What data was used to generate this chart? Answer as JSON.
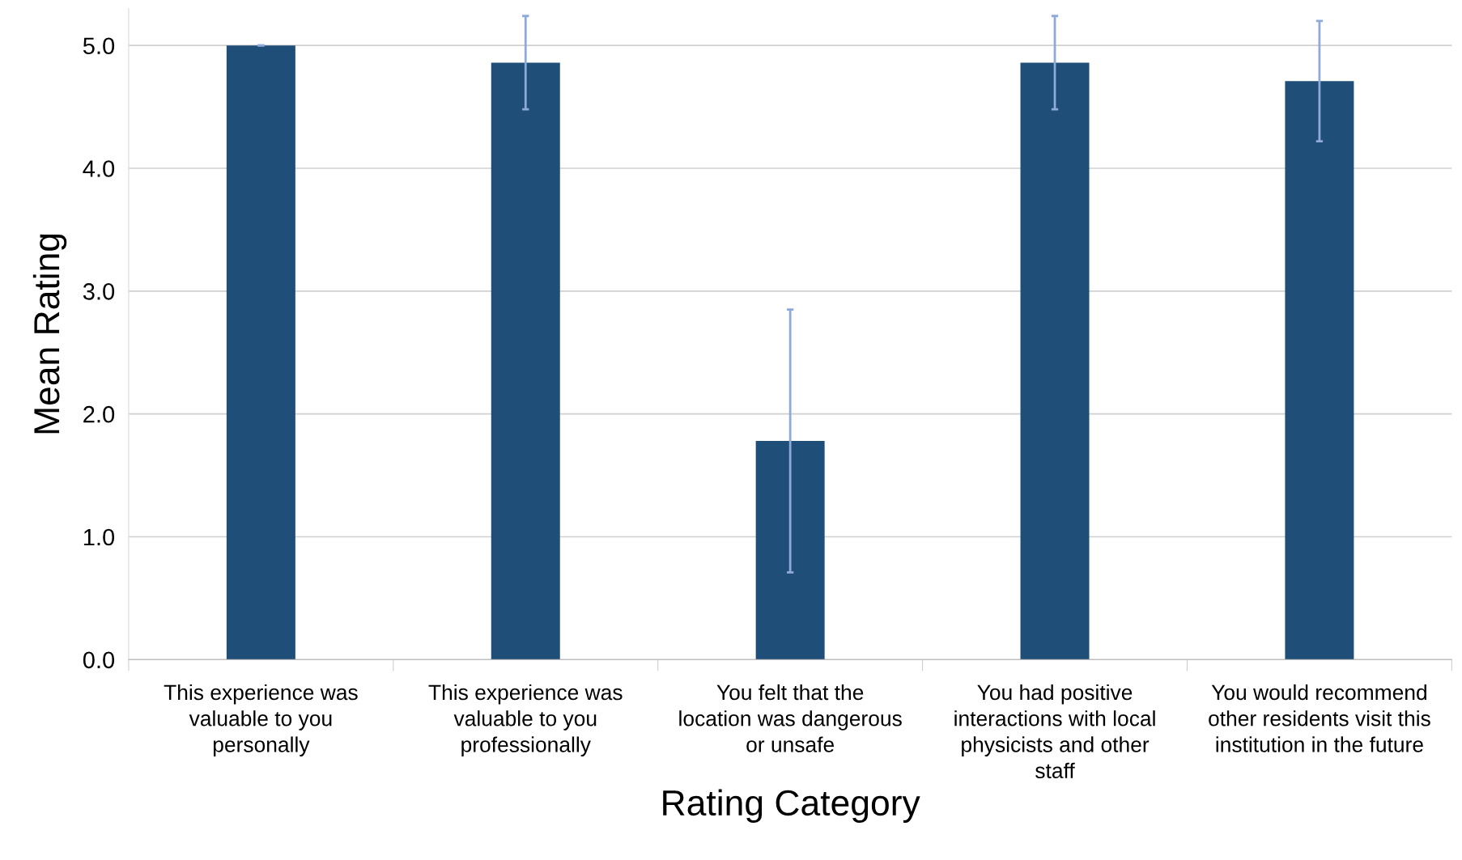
{
  "chart_data": {
    "type": "bar",
    "xlabel": "Rating Category",
    "ylabel": "Mean Rating",
    "categories": [
      "This experience was\nvaluable to you\npersonally",
      "This experience was\nvaluable to you\nprofessionally",
      "You felt that the\nlocation was dangerous\nor unsafe",
      "You had positive\ninteractions with local\nphysicists and other\nstaff",
      "You would recommend\nother residents visit this\ninstitution in the future"
    ],
    "values": [
      5.0,
      4.86,
      1.78,
      4.86,
      4.71
    ],
    "errors": [
      0,
      0.38,
      1.07,
      0.38,
      0.49
    ],
    "color": "#1f4e79",
    "ylim": [
      0,
      5.3
    ],
    "yticks": [
      {
        "value": 0,
        "label": "0.0"
      },
      {
        "value": 1,
        "label": "1.0"
      },
      {
        "value": 2,
        "label": "2.0"
      },
      {
        "value": 3,
        "label": "3.0"
      },
      {
        "value": 4,
        "label": "4.0"
      },
      {
        "value": 5,
        "label": "5.0"
      }
    ],
    "grid": "y",
    "legend": false
  }
}
